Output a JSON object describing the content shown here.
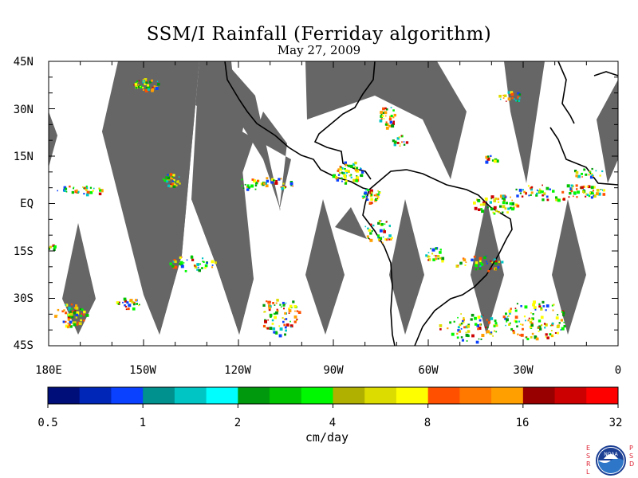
{
  "title": "SSM/I Rainfall (Ferriday algorithm)",
  "date": "May 27, 2009",
  "lat_labels": [
    "45N",
    "30N",
    "15N",
    "EQ",
    "15S",
    "30S",
    "45S"
  ],
  "lon_labels": [
    "180E",
    "150W",
    "120W",
    "90W",
    "60W",
    "30W",
    "0"
  ],
  "colorbar": {
    "tick_labels": [
      "0.5",
      "1",
      "2",
      "4",
      "8",
      "16",
      "32"
    ],
    "unit": "cm/day",
    "colors": [
      "#000e7a",
      "#0026b8",
      "#0a40ff",
      "#00908e",
      "#00c5c5",
      "#00fefe",
      "#00980c",
      "#00c400",
      "#00f800",
      "#b0b000",
      "#dcdc00",
      "#fefe00",
      "#ff5000",
      "#ff7800",
      "#ffa000",
      "#980000",
      "#cc0000",
      "#ff0000"
    ]
  },
  "colors": {
    "swath_gap": "#666666",
    "coastline": "#000000",
    "background": "#ffffff"
  },
  "logo": {
    "left_letters": "ESRL",
    "right_letters": "PSD",
    "name": "NOAA"
  }
}
